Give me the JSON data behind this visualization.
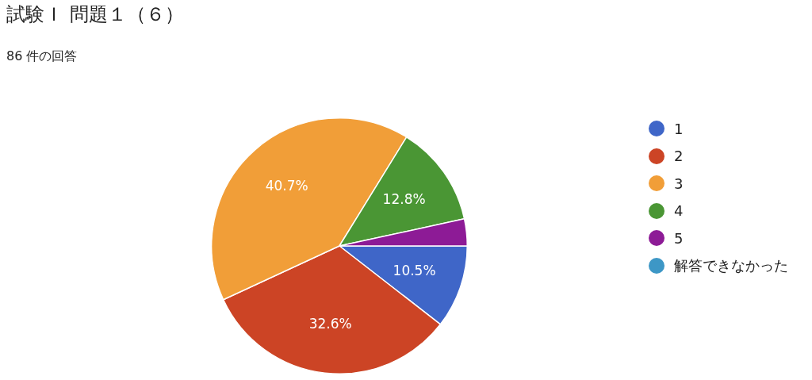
{
  "chart_data": {
    "type": "pie",
    "title": "試験Ｉ 問題１（６）",
    "subtitle": "86 件の回答",
    "categories": [
      "1",
      "2",
      "3",
      "4",
      "5",
      "解答できなかった"
    ],
    "values": [
      10.5,
      32.6,
      40.7,
      12.8,
      3.4,
      0
    ],
    "colors": [
      "#3f66c8",
      "#cc4425",
      "#f19e38",
      "#4a9634",
      "#8d1b96",
      "#3d97c6"
    ],
    "value_labels": [
      "10.5%",
      "32.6%",
      "40.7%",
      "12.8%",
      null,
      null
    ],
    "legend": "right"
  }
}
